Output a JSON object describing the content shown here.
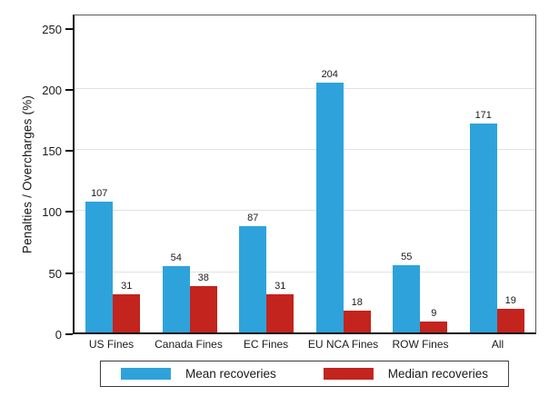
{
  "chart_data": {
    "type": "bar",
    "title": "",
    "ylabel": "Penalties / Overcharges (%)",
    "xlabel": "",
    "categories": [
      "US Fines",
      "Canada Fines",
      "EC Fines",
      "EU NCA Fines",
      "ROW Fines",
      "All"
    ],
    "series": [
      {
        "name": "Mean recoveries",
        "color": "#2EA3DB",
        "values": [
          107,
          54,
          87,
          204,
          55,
          171
        ]
      },
      {
        "name": "Median recoveries",
        "color": "#C3241D",
        "values": [
          31,
          38,
          31,
          18,
          9,
          19
        ]
      }
    ],
    "value_labels_shown": true,
    "yticks": [
      0,
      50,
      100,
      150,
      200,
      250
    ],
    "ygrid_at": [
      50,
      100,
      150,
      200
    ],
    "ylim": [
      0,
      261
    ],
    "gridline_color": "#E1E1E1",
    "axis_color": "#111111",
    "legend_position": "bottom",
    "legend_border": true
  }
}
